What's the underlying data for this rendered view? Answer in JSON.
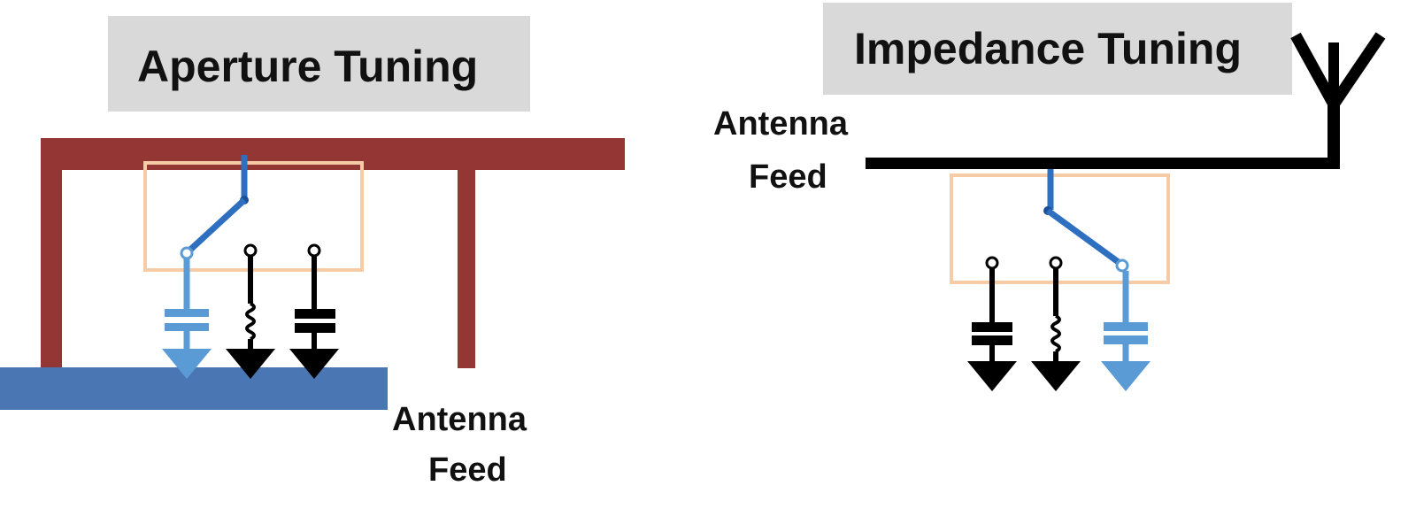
{
  "aperture": {
    "title": "Aperture Tuning",
    "feed_line1": "Antenna",
    "feed_line2": "Feed"
  },
  "impedance": {
    "title": "Impedance Tuning",
    "feed_line1": "Antenna",
    "feed_line2": "Feed"
  },
  "colors": {
    "antenna_red": "#943634",
    "ground_blue": "#4a77b4",
    "switch_blue": "#2e6fc0",
    "active_blue": "#5b9bd5",
    "switch_box": "#f8cba7",
    "title_gray": "#d9d9d9",
    "line_black": "#000000"
  }
}
